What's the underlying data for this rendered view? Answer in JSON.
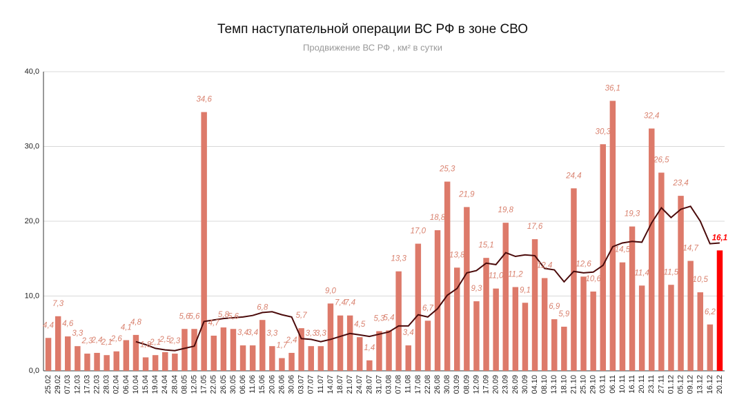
{
  "chart_data": {
    "type": "bar",
    "title": "Темп наступательной операции ВС РФ в зоне СВО",
    "subtitle": "Продвижение ВС РФ , км² в сутки",
    "categories": [
      "25.02",
      "29.02",
      "07.03",
      "12.03",
      "17.03",
      "22.03",
      "28.03",
      "02.04",
      "06.04",
      "10.04",
      "15.04",
      "19.04",
      "24.04",
      "28.04",
      "08.05",
      "12.05",
      "17.05",
      "22.05",
      "26.05",
      "30.05",
      "06.06",
      "11.06",
      "15.06",
      "20.06",
      "26.06",
      "30.06",
      "03.07",
      "07.07",
      "11.07",
      "14.07",
      "18.07",
      "21.07",
      "24.07",
      "28.07",
      "31.07",
      "03.08",
      "07.08",
      "11.08",
      "17.08",
      "22.08",
      "26.08",
      "30.08",
      "03.09",
      "08.09",
      "12.09",
      "17.09",
      "20.09",
      "23.09",
      "26.09",
      "30.09",
      "04.10",
      "08.10",
      "13.10",
      "18.10",
      "21.10",
      "25.10",
      "29.10",
      "03.11",
      "06.11",
      "10.11",
      "16.11",
      "20.11",
      "23.11",
      "27.11",
      "01.12",
      "05.12",
      "09.12",
      "13.12",
      "16.12",
      "20.12"
    ],
    "series": [
      {
        "color": "#dd7a6a",
        "highlight": {
          "index": 69,
          "color": "#ff0000"
        },
        "values": [
          4.4,
          7.3,
          4.6,
          3.3,
          2.3,
          2.4,
          2.1,
          2.6,
          4.1,
          4.8,
          1.8,
          2.1,
          2.5,
          2.3,
          5.6,
          5.6,
          34.6,
          4.7,
          5.8,
          5.6,
          3.4,
          3.4,
          6.8,
          3.3,
          1.7,
          2.4,
          5.7,
          3.3,
          3.3,
          9.0,
          7.4,
          7.4,
          4.5,
          1.4,
          5.3,
          5.4,
          13.3,
          3.4,
          17.0,
          6.7,
          18.8,
          25.3,
          13.8,
          21.9,
          9.3,
          15.1,
          11.0,
          19.8,
          11.2,
          9.1,
          17.6,
          12.4,
          6.9,
          5.9,
          24.4,
          12.6,
          10.6,
          30.3,
          36.1,
          14.5,
          19.3,
          11.4,
          32.4,
          26.5,
          11.5,
          23.4,
          14.7,
          10.5,
          6.2,
          16.1
        ],
        "value_labels": [
          "4,4",
          "7,3",
          "4,6",
          "3,3",
          "2,3",
          "2,4",
          "2,1",
          "2,6",
          "4,1",
          "4,8",
          "1,8",
          "2,1",
          "2,5",
          "2,3",
          "5,6",
          "5,6",
          "34,6",
          "4,7",
          "5,8",
          "5,6",
          "3,4",
          "3,4",
          "6,8",
          "3,3",
          "1,7",
          "2,4",
          "5,7",
          "3,3",
          "3,3",
          "9,0",
          "7,4",
          "7,4",
          "4,5",
          "1,4",
          "5,3",
          "5,4",
          "13,3",
          "3,4",
          "17,0",
          "6,7",
          "18,8",
          "25,3",
          "13,8",
          "21,9",
          "9,3",
          "15,1",
          "11,0",
          "19,8",
          "11,2",
          "9,1",
          "17,6",
          "12,4",
          "6,9",
          "5,9",
          "24,4",
          "12,6",
          "10,6",
          "30,3",
          "36,1",
          "14,5",
          "19,3",
          "11,4",
          "32,4",
          "26,5",
          "11,5",
          "23,4",
          "14,7",
          "10,5",
          "6,2",
          "16,1"
        ]
      },
      {
        "type": "line",
        "color": "#4a0a0a",
        "values": [
          null,
          null,
          null,
          null,
          null,
          null,
          null,
          null,
          null,
          3.9,
          3.5,
          3.0,
          2.8,
          2.7,
          3.0,
          3.3,
          6.6,
          6.8,
          7.0,
          7.1,
          7.2,
          7.4,
          7.8,
          7.9,
          7.5,
          7.2,
          4.3,
          4.2,
          3.9,
          4.2,
          4.6,
          5.0,
          4.8,
          4.6,
          4.9,
          5.2,
          6.0,
          6.0,
          7.5,
          7.2,
          8.3,
          10.1,
          11.0,
          13.1,
          13.4,
          14.4,
          14.2,
          15.8,
          15.3,
          15.5,
          15.4,
          13.7,
          13.5,
          11.9,
          13.3,
          13.1,
          13.2,
          14.1,
          16.6,
          17.1,
          17.3,
          17.2,
          19.8,
          21.8,
          20.5,
          21.6,
          22.0,
          20.0,
          17.0,
          17.1
        ]
      }
    ],
    "ylim": [
      0,
      40
    ],
    "yticks": [
      {
        "value": 0,
        "label": "0,0"
      },
      {
        "value": 10,
        "label": "10,0"
      },
      {
        "value": 20,
        "label": "20,0"
      },
      {
        "value": 30,
        "label": "30,0"
      },
      {
        "value": 40,
        "label": "40,0"
      }
    ],
    "grid": true
  }
}
